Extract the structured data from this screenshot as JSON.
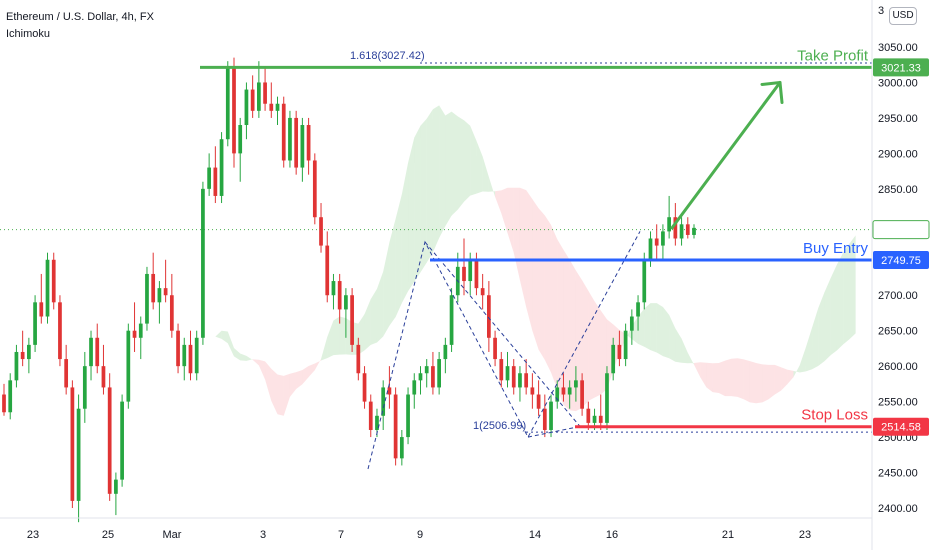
{
  "header": {
    "symbol": "Ethereum / U.S. Dollar, 4h, FX",
    "indicator": "Ichimoku"
  },
  "currency_button": "USD",
  "chart_data": {
    "type": "candlestick",
    "title": "Ethereum / U.S. Dollar, 4h, FX",
    "indicator": "Ichimoku",
    "y_axis": {
      "ticks": [
        2400,
        2450,
        2500,
        2550,
        2600,
        2650,
        2700,
        2750,
        2800,
        2850,
        2900,
        2950,
        3000,
        3050
      ],
      "ylim": [
        2385,
        3105
      ],
      "top_partial_label": "3"
    },
    "x_axis": {
      "ticks": [
        "23",
        "25",
        "Mar",
        "3",
        "7",
        "9",
        "14",
        "16",
        "21",
        "23"
      ]
    },
    "current_price": 2792.55,
    "levels": [
      {
        "name": "Take Profit",
        "price": 3021.33,
        "color": "#4caf50"
      },
      {
        "name": "Buy Entry",
        "price": 2749.75,
        "color": "#2962ff"
      },
      {
        "name": "Stop Loss",
        "price": 2514.58,
        "color": "#f23645"
      }
    ],
    "fib_labels": [
      {
        "text": "1.618(3027.42)",
        "price": 3027.42
      },
      {
        "text": "1(2506.99)",
        "price": 2506.99
      }
    ],
    "candles": [
      [
        2560,
        2575,
        2530,
        2535
      ],
      [
        2535,
        2590,
        2525,
        2580
      ],
      [
        2580,
        2630,
        2570,
        2620
      ],
      [
        2620,
        2650,
        2600,
        2610
      ],
      [
        2610,
        2640,
        2590,
        2630
      ],
      [
        2630,
        2700,
        2620,
        2690
      ],
      [
        2690,
        2730,
        2660,
        2670
      ],
      [
        2670,
        2760,
        2660,
        2750
      ],
      [
        2750,
        2760,
        2680,
        2690
      ],
      [
        2690,
        2700,
        2600,
        2610
      ],
      [
        2610,
        2630,
        2560,
        2570
      ],
      [
        2570,
        2580,
        2400,
        2410
      ],
      [
        2410,
        2560,
        2380,
        2540
      ],
      [
        2540,
        2620,
        2520,
        2600
      ],
      [
        2600,
        2650,
        2580,
        2640
      ],
      [
        2640,
        2660,
        2590,
        2600
      ],
      [
        2600,
        2630,
        2560,
        2570
      ],
      [
        2570,
        2590,
        2410,
        2420
      ],
      [
        2420,
        2450,
        2390,
        2440
      ],
      [
        2440,
        2560,
        2430,
        2550
      ],
      [
        2550,
        2660,
        2540,
        2650
      ],
      [
        2650,
        2690,
        2620,
        2640
      ],
      [
        2640,
        2670,
        2610,
        2660
      ],
      [
        2660,
        2740,
        2650,
        2730
      ],
      [
        2730,
        2760,
        2680,
        2690
      ],
      [
        2690,
        2720,
        2660,
        2710
      ],
      [
        2710,
        2750,
        2690,
        2700
      ],
      [
        2700,
        2730,
        2640,
        2650
      ],
      [
        2650,
        2660,
        2590,
        2600
      ],
      [
        2600,
        2640,
        2580,
        2630
      ],
      [
        2630,
        2650,
        2580,
        2590
      ],
      [
        2590,
        2650,
        2580,
        2640
      ],
      [
        2640,
        2860,
        2630,
        2850
      ],
      [
        2850,
        2900,
        2840,
        2880
      ],
      [
        2880,
        2910,
        2830,
        2840
      ],
      [
        2840,
        2930,
        2830,
        2920
      ],
      [
        2920,
        3030,
        2910,
        3020
      ],
      [
        3020,
        3035,
        2880,
        2900
      ],
      [
        2900,
        2950,
        2860,
        2940
      ],
      [
        2940,
        3000,
        2920,
        2990
      ],
      [
        2990,
        3010,
        2950,
        2960
      ],
      [
        2960,
        3030,
        2950,
        3000
      ],
      [
        3000,
        3020,
        2960,
        2970
      ],
      [
        2970,
        3000,
        2950,
        2960
      ],
      [
        2960,
        2980,
        2940,
        2970
      ],
      [
        2970,
        2980,
        2880,
        2890
      ],
      [
        2890,
        2960,
        2880,
        2950
      ],
      [
        2950,
        2960,
        2870,
        2880
      ],
      [
        2880,
        2950,
        2860,
        2940
      ],
      [
        2940,
        2950,
        2870,
        2890
      ],
      [
        2890,
        2900,
        2800,
        2810
      ],
      [
        2810,
        2830,
        2760,
        2770
      ],
      [
        2770,
        2790,
        2690,
        2700
      ],
      [
        2700,
        2730,
        2680,
        2720
      ],
      [
        2720,
        2730,
        2660,
        2680
      ],
      [
        2680,
        2710,
        2640,
        2700
      ],
      [
        2700,
        2710,
        2620,
        2630
      ],
      [
        2630,
        2640,
        2580,
        2590
      ],
      [
        2590,
        2600,
        2540,
        2550
      ],
      [
        2550,
        2560,
        2500,
        2510
      ],
      [
        2510,
        2540,
        2500,
        2530
      ],
      [
        2530,
        2580,
        2510,
        2570
      ],
      [
        2570,
        2600,
        2540,
        2560
      ],
      [
        2560,
        2570,
        2460,
        2470
      ],
      [
        2470,
        2510,
        2460,
        2500
      ],
      [
        2500,
        2570,
        2490,
        2560
      ],
      [
        2560,
        2590,
        2540,
        2580
      ],
      [
        2580,
        2600,
        2560,
        2590
      ],
      [
        2590,
        2610,
        2570,
        2600
      ],
      [
        2600,
        2620,
        2560,
        2570
      ],
      [
        2570,
        2620,
        2560,
        2610
      ],
      [
        2610,
        2640,
        2590,
        2630
      ],
      [
        2630,
        2710,
        2620,
        2700
      ],
      [
        2700,
        2760,
        2690,
        2740
      ],
      [
        2740,
        2780,
        2700,
        2720
      ],
      [
        2720,
        2760,
        2700,
        2750
      ],
      [
        2750,
        2760,
        2700,
        2710
      ],
      [
        2710,
        2730,
        2680,
        2700
      ],
      [
        2700,
        2720,
        2620,
        2640
      ],
      [
        2640,
        2650,
        2600,
        2610
      ],
      [
        2610,
        2620,
        2570,
        2580
      ],
      [
        2580,
        2620,
        2570,
        2600
      ],
      [
        2600,
        2610,
        2560,
        2570
      ],
      [
        2570,
        2600,
        2550,
        2590
      ],
      [
        2590,
        2610,
        2560,
        2570
      ],
      [
        2570,
        2590,
        2540,
        2560
      ],
      [
        2560,
        2580,
        2530,
        2540
      ],
      [
        2540,
        2560,
        2500,
        2510
      ],
      [
        2510,
        2560,
        2500,
        2550
      ],
      [
        2550,
        2580,
        2540,
        2570
      ],
      [
        2570,
        2590,
        2550,
        2560
      ],
      [
        2560,
        2580,
        2540,
        2570
      ],
      [
        2570,
        2600,
        2550,
        2580
      ],
      [
        2580,
        2590,
        2530,
        2540
      ],
      [
        2540,
        2550,
        2510,
        2520
      ],
      [
        2520,
        2540,
        2510,
        2530
      ],
      [
        2530,
        2560,
        2510,
        2520
      ],
      [
        2520,
        2600,
        2510,
        2590
      ],
      [
        2590,
        2640,
        2580,
        2630
      ],
      [
        2630,
        2650,
        2600,
        2610
      ],
      [
        2610,
        2660,
        2600,
        2650
      ],
      [
        2650,
        2680,
        2630,
        2670
      ],
      [
        2670,
        2700,
        2650,
        2690
      ],
      [
        2690,
        2760,
        2680,
        2750
      ],
      [
        2750,
        2790,
        2740,
        2780
      ],
      [
        2780,
        2800,
        2750,
        2770
      ],
      [
        2770,
        2800,
        2750,
        2790
      ],
      [
        2790,
        2840,
        2780,
        2810
      ],
      [
        2810,
        2830,
        2770,
        2780
      ],
      [
        2780,
        2810,
        2770,
        2800
      ],
      [
        2800,
        2810,
        2780,
        2785
      ],
      [
        2785,
        2800,
        2780,
        2795
      ]
    ]
  }
}
